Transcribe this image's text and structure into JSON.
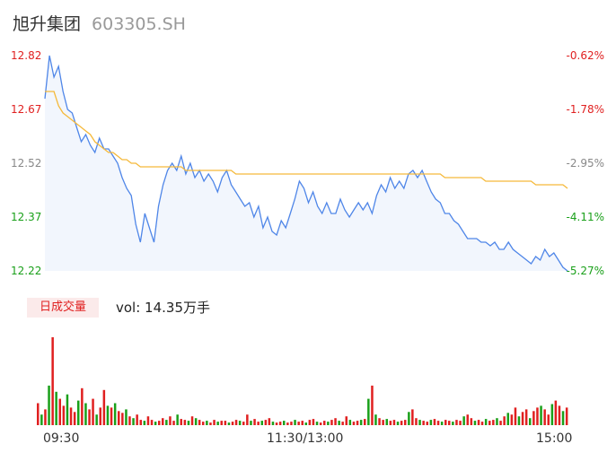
{
  "header": {
    "name": "旭升集团",
    "code": "603305.SH"
  },
  "colors": {
    "up": "#e02020",
    "down": "#1aa01a",
    "price_line": "#4f86e8",
    "avg_line": "#f5b93a",
    "area_fill": "#f2f6fd"
  },
  "chart_data": [
    {
      "type": "line",
      "x_ticks": [
        "09:30",
        "11:30/13:00",
        "15:00"
      ],
      "y_ticks_left": [
        "12.82",
        "12.67",
        "12.52",
        "12.37",
        "12.22"
      ],
      "y_ticks_right": [
        "-0.62%",
        "-1.78%",
        "-2.95%",
        "-4.11%",
        "-5.27%"
      ],
      "ylim": [
        12.22,
        12.82
      ],
      "series": [
        {
          "role": "price",
          "values": [
            12.7,
            12.82,
            12.76,
            12.79,
            12.72,
            12.67,
            12.66,
            12.62,
            12.58,
            12.6,
            12.57,
            12.55,
            12.59,
            12.56,
            12.56,
            12.54,
            12.52,
            12.48,
            12.45,
            12.43,
            12.35,
            12.3,
            12.38,
            12.34,
            12.3,
            12.4,
            12.46,
            12.5,
            12.52,
            12.5,
            12.54,
            12.49,
            12.52,
            12.48,
            12.5,
            12.47,
            12.49,
            12.47,
            12.44,
            12.48,
            12.5,
            12.46,
            12.44,
            12.42,
            12.4,
            12.41,
            12.37,
            12.4,
            12.34,
            12.37,
            12.33,
            12.32,
            12.36,
            12.34,
            12.38,
            12.42,
            12.47,
            12.45,
            12.41,
            12.44,
            12.4,
            12.38,
            12.41,
            12.38,
            12.38,
            12.42,
            12.39,
            12.37,
            12.39,
            12.41,
            12.39,
            12.41,
            12.38,
            12.43,
            12.46,
            12.44,
            12.48,
            12.45,
            12.47,
            12.45,
            12.49,
            12.5,
            12.48,
            12.5,
            12.47,
            12.44,
            12.42,
            12.41,
            12.38,
            12.38,
            12.36,
            12.35,
            12.33,
            12.31,
            12.31,
            12.31,
            12.3,
            12.3,
            12.29,
            12.3,
            12.28,
            12.28,
            12.3,
            12.28,
            12.27,
            12.26,
            12.25,
            12.24,
            12.26,
            12.25,
            12.28,
            12.26,
            12.27,
            12.25,
            12.23,
            12.22
          ],
          "color": "#4f86e8"
        },
        {
          "role": "average",
          "values": [
            12.72,
            12.72,
            12.72,
            12.68,
            12.66,
            12.65,
            12.64,
            12.63,
            12.62,
            12.61,
            12.6,
            12.58,
            12.57,
            12.56,
            12.55,
            12.55,
            12.54,
            12.53,
            12.53,
            12.52,
            12.52,
            12.51,
            12.51,
            12.51,
            12.51,
            12.51,
            12.51,
            12.51,
            12.51,
            12.51,
            12.51,
            12.5,
            12.5,
            12.5,
            12.5,
            12.5,
            12.5,
            12.5,
            12.5,
            12.5,
            12.5,
            12.5,
            12.49,
            12.49,
            12.49,
            12.49,
            12.49,
            12.49,
            12.49,
            12.49,
            12.49,
            12.49,
            12.49,
            12.49,
            12.49,
            12.49,
            12.49,
            12.49,
            12.49,
            12.49,
            12.49,
            12.49,
            12.49,
            12.49,
            12.49,
            12.49,
            12.49,
            12.49,
            12.49,
            12.49,
            12.49,
            12.49,
            12.49,
            12.49,
            12.49,
            12.49,
            12.49,
            12.49,
            12.49,
            12.49,
            12.49,
            12.49,
            12.49,
            12.49,
            12.49,
            12.49,
            12.49,
            12.49,
            12.48,
            12.48,
            12.48,
            12.48,
            12.48,
            12.48,
            12.48,
            12.48,
            12.48,
            12.47,
            12.47,
            12.47,
            12.47,
            12.47,
            12.47,
            12.47,
            12.47,
            12.47,
            12.47,
            12.47,
            12.46,
            12.46,
            12.46,
            12.46,
            12.46,
            12.46,
            12.46,
            12.45
          ],
          "color": "#f5b93a"
        }
      ]
    },
    {
      "type": "bar",
      "label": "日成交量",
      "summary": "vol: 14.35万手",
      "values": [
        0.25,
        0.12,
        0.18,
        0.45,
        1.0,
        0.38,
        0.3,
        0.22,
        0.35,
        0.2,
        0.15,
        0.28,
        0.42,
        0.25,
        0.18,
        0.3,
        0.12,
        0.2,
        0.4,
        0.22,
        0.2,
        0.25,
        0.16,
        0.14,
        0.18,
        0.1,
        0.08,
        0.12,
        0.06,
        0.05,
        0.1,
        0.06,
        0.04,
        0.05,
        0.08,
        0.06,
        0.1,
        0.05,
        0.12,
        0.07,
        0.06,
        0.05,
        0.1,
        0.08,
        0.06,
        0.04,
        0.05,
        0.03,
        0.06,
        0.04,
        0.05,
        0.05,
        0.03,
        0.04,
        0.06,
        0.05,
        0.04,
        0.12,
        0.05,
        0.07,
        0.04,
        0.05,
        0.06,
        0.08,
        0.04,
        0.03,
        0.04,
        0.05,
        0.03,
        0.04,
        0.06,
        0.04,
        0.05,
        0.03,
        0.06,
        0.07,
        0.04,
        0.03,
        0.05,
        0.04,
        0.06,
        0.08,
        0.05,
        0.04,
        0.1,
        0.06,
        0.04,
        0.05,
        0.06,
        0.07,
        0.3,
        0.45,
        0.12,
        0.08,
        0.06,
        0.07,
        0.05,
        0.06,
        0.04,
        0.05,
        0.06,
        0.15,
        0.18,
        0.08,
        0.06,
        0.05,
        0.04,
        0.06,
        0.07,
        0.05,
        0.04,
        0.06,
        0.05,
        0.04,
        0.06,
        0.05,
        0.1,
        0.12,
        0.08,
        0.05,
        0.06,
        0.04,
        0.07,
        0.05,
        0.06,
        0.08,
        0.05,
        0.1,
        0.14,
        0.12,
        0.2,
        0.1,
        0.15,
        0.18,
        0.08,
        0.16,
        0.2,
        0.22,
        0.18,
        0.12,
        0.24,
        0.28,
        0.22,
        0.16,
        0.2
      ],
      "colors": [
        "up",
        "down",
        "up",
        "down",
        "up",
        "down",
        "up",
        "up",
        "down",
        "up",
        "up",
        "down",
        "up",
        "down",
        "up",
        "up",
        "down",
        "up",
        "up",
        "down",
        "up",
        "down",
        "up",
        "up",
        "down",
        "up",
        "down",
        "up",
        "up",
        "down",
        "up",
        "up",
        "down",
        "up",
        "up",
        "down",
        "up",
        "up",
        "down",
        "up",
        "up",
        "down",
        "up",
        "down",
        "up",
        "up",
        "down",
        "up",
        "up",
        "down",
        "up",
        "up",
        "down",
        "up",
        "up",
        "down",
        "up",
        "up",
        "down",
        "up",
        "up",
        "down",
        "up",
        "up",
        "down",
        "up",
        "up",
        "down",
        "up",
        "up",
        "down",
        "up",
        "up",
        "down",
        "up",
        "up",
        "down",
        "up",
        "up",
        "down",
        "up",
        "up",
        "down",
        "up",
        "up",
        "down",
        "up",
        "up",
        "down",
        "up",
        "down",
        "up",
        "down",
        "up",
        "up",
        "down",
        "up",
        "up",
        "down",
        "up",
        "up",
        "down",
        "up",
        "up",
        "down",
        "up",
        "up",
        "down",
        "up",
        "up",
        "down",
        "up",
        "up",
        "down",
        "up",
        "up",
        "down",
        "up",
        "up",
        "down",
        "up",
        "up",
        "down",
        "up",
        "up",
        "down",
        "up",
        "up",
        "down",
        "up",
        "up",
        "down",
        "up",
        "up",
        "down",
        "up",
        "up",
        "down",
        "up",
        "up",
        "down",
        "up",
        "up",
        "down",
        "up"
      ]
    }
  ]
}
